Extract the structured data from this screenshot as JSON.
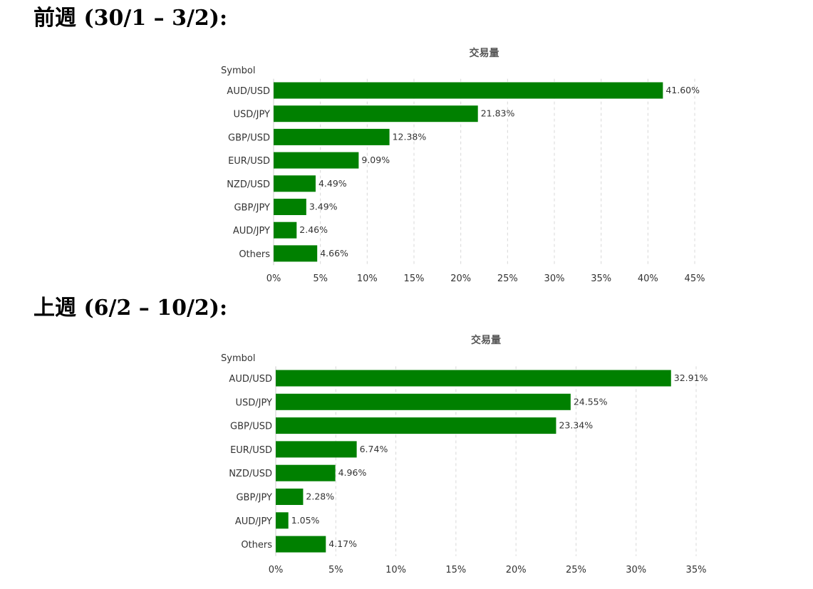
{
  "sections": [
    {
      "heading": "前週 (30/1 – 3/2):"
    },
    {
      "heading": "上週 (6/2 – 10/2):"
    }
  ],
  "chart_data": [
    {
      "type": "bar",
      "orientation": "horizontal",
      "title": "交易量",
      "ylabel": "Symbol",
      "xlabel": "",
      "categories": [
        "AUD/USD",
        "USD/JPY",
        "GBP/USD",
        "EUR/USD",
        "NZD/USD",
        "GBP/JPY",
        "AUD/JPY",
        "Others"
      ],
      "series": [
        {
          "values": [
            41.6,
            21.83,
            12.38,
            9.09,
            4.49,
            3.49,
            2.46,
            4.66
          ]
        }
      ],
      "data_labels": [
        "41.60%",
        "21.83%",
        "12.38%",
        "9.09%",
        "4.49%",
        "3.49%",
        "2.46%",
        "4.66%"
      ],
      "xlim": [
        0,
        45
      ],
      "xticks": [
        0,
        5,
        10,
        15,
        20,
        25,
        30,
        35,
        40,
        45
      ],
      "xtick_labels": [
        "0%",
        "5%",
        "10%",
        "15%",
        "20%",
        "25%",
        "30%",
        "35%",
        "40%",
        "45%"
      ],
      "grid": "vertical dashed",
      "legend": "none",
      "bar_color": "#008000"
    },
    {
      "type": "bar",
      "orientation": "horizontal",
      "title": "交易量",
      "ylabel": "Symbol",
      "xlabel": "",
      "categories": [
        "AUD/USD",
        "USD/JPY",
        "GBP/USD",
        "EUR/USD",
        "NZD/USD",
        "GBP/JPY",
        "AUD/JPY",
        "Others"
      ],
      "series": [
        {
          "values": [
            32.91,
            24.55,
            23.34,
            6.74,
            4.96,
            2.28,
            1.05,
            4.17
          ]
        }
      ],
      "data_labels": [
        "32.91%",
        "24.55%",
        "23.34%",
        "6.74%",
        "4.96%",
        "2.28%",
        "1.05%",
        "4.17%"
      ],
      "xlim": [
        0,
        35
      ],
      "xticks": [
        0,
        5,
        10,
        15,
        20,
        25,
        30,
        35
      ],
      "xtick_labels": [
        "0%",
        "5%",
        "10%",
        "15%",
        "20%",
        "25%",
        "30%",
        "35%"
      ],
      "grid": "vertical dashed",
      "legend": "none",
      "bar_color": "#008000"
    }
  ]
}
